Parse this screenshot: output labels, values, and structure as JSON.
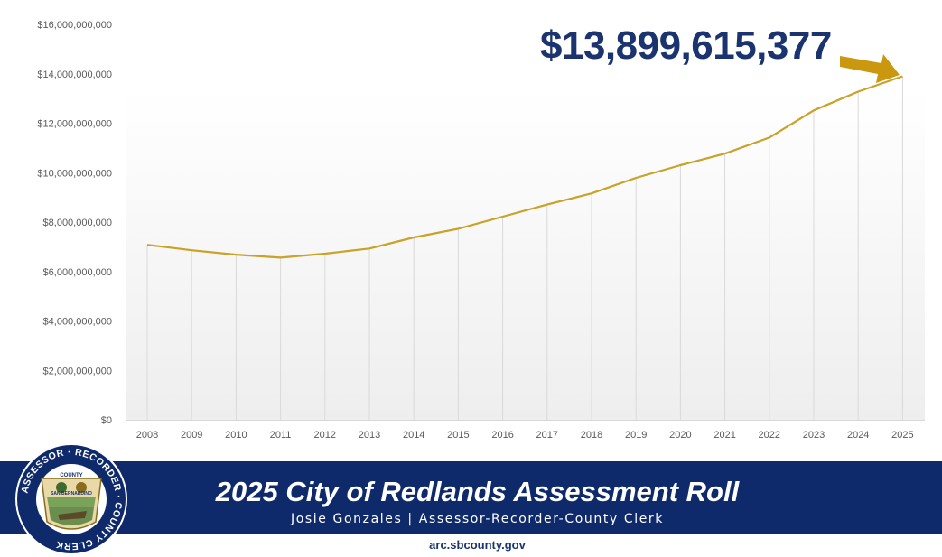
{
  "chart_data": {
    "type": "line",
    "title": "",
    "xlabel": "",
    "ylabel": "",
    "categories": [
      "2008",
      "2009",
      "2010",
      "2011",
      "2012",
      "2013",
      "2014",
      "2015",
      "2016",
      "2017",
      "2018",
      "2019",
      "2020",
      "2021",
      "2022",
      "2023",
      "2024",
      "2025"
    ],
    "series": [
      {
        "color": "#c9a227",
        "values": [
          7080000000,
          6860000000,
          6680000000,
          6560000000,
          6720000000,
          6930000000,
          7380000000,
          7730000000,
          8220000000,
          8710000000,
          9160000000,
          9790000000,
          10300000000,
          10770000000,
          11420000000,
          12520000000,
          13280000000,
          13899615377
        ]
      }
    ],
    "ylim": [
      0,
      16000000000
    ],
    "yticks": [
      0,
      2000000000,
      4000000000,
      6000000000,
      8000000000,
      10000000000,
      12000000000,
      14000000000,
      16000000000
    ],
    "ytick_labels": [
      "$0",
      "$2,000,000,000",
      "$4,000,000,000",
      "$6,000,000,000",
      "$8,000,000,000",
      "$10,000,000,000",
      "$12,000,000,000",
      "$14,000,000,000",
      "$16,000,000,000"
    ],
    "vertical_drop_lines": true,
    "horizontal_grid": false
  },
  "callout": {
    "value_label": "$13,899,615,377",
    "text_color": "#1b3470",
    "arrow_color": "#c9980f"
  },
  "banner": {
    "title": "2025 City of Redlands Assessment Roll",
    "subtitle": "Josie Gonzales | Assessor-Recorder-County Clerk",
    "background": "#0f2a6b"
  },
  "footer": {
    "url": "arc.sbcounty.gov"
  },
  "seal": {
    "ring_text": "ASSESSOR · RECORDER · COUNTY CLERK",
    "inner_text_top": "COUNTY",
    "inner_text_bottom": "SAN BERNARDINO",
    "icon": "county-seal-logo"
  }
}
